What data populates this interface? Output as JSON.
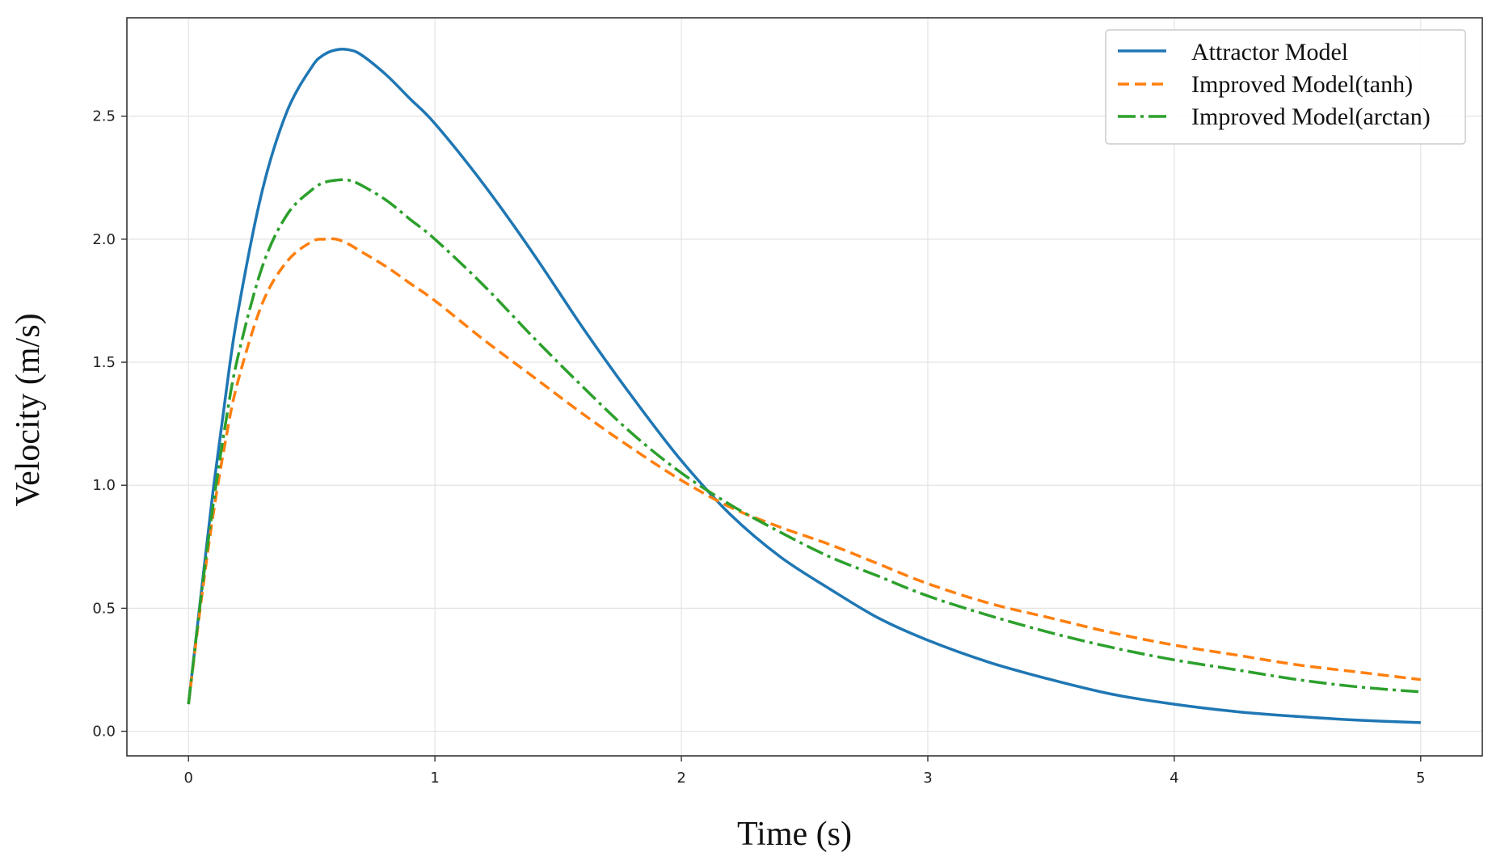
{
  "chart_data": {
    "type": "line",
    "title": "",
    "xlabel": "Time (s)",
    "ylabel": "Velocity (m/s)",
    "xlim": [
      -0.25,
      5.25
    ],
    "ylim": [
      -0.1,
      2.9
    ],
    "grid": true,
    "legend_position": "top-right",
    "x_ticks": [
      0,
      1,
      2,
      3,
      4,
      5
    ],
    "x_tick_labels": [
      "0",
      "1",
      "2",
      "3",
      "4",
      "5"
    ],
    "y_ticks": [
      0.0,
      0.5,
      1.0,
      1.5,
      2.0,
      2.5
    ],
    "y_tick_labels": [
      "0.0",
      "0.5",
      "1.0",
      "1.5",
      "2.0",
      "2.5"
    ],
    "x": [
      0,
      0.05,
      0.1,
      0.15,
      0.2,
      0.3,
      0.4,
      0.5,
      0.55,
      0.6,
      0.65,
      0.7,
      0.8,
      0.9,
      1.0,
      1.2,
      1.4,
      1.6,
      1.8,
      2.0,
      2.2,
      2.4,
      2.6,
      2.8,
      3.0,
      3.25,
      3.5,
      3.75,
      4.0,
      4.25,
      4.5,
      4.75,
      5.0
    ],
    "series": [
      {
        "name": "Attractor Model",
        "color": "#1f77b4",
        "style": "solid",
        "values": [
          0.11,
          0.55,
          0.98,
          1.36,
          1.7,
          2.2,
          2.52,
          2.7,
          2.75,
          2.77,
          2.77,
          2.75,
          2.67,
          2.57,
          2.47,
          2.22,
          1.94,
          1.64,
          1.36,
          1.1,
          0.88,
          0.71,
          0.58,
          0.46,
          0.37,
          0.28,
          0.21,
          0.15,
          0.11,
          0.08,
          0.06,
          0.045,
          0.035
        ]
      },
      {
        "name": "Improved Model(tanh)",
        "color": "#ff7f0e",
        "style": "dashed",
        "values": [
          0.11,
          0.52,
          0.88,
          1.18,
          1.42,
          1.74,
          1.91,
          1.99,
          2.0,
          2.0,
          1.98,
          1.95,
          1.89,
          1.82,
          1.75,
          1.59,
          1.44,
          1.29,
          1.15,
          1.02,
          0.91,
          0.83,
          0.76,
          0.68,
          0.6,
          0.52,
          0.46,
          0.4,
          0.35,
          0.31,
          0.27,
          0.24,
          0.21
        ]
      },
      {
        "name": "Improved Model(arctan)",
        "color": "#2ca02c",
        "style": "dashdot",
        "values": [
          0.11,
          0.54,
          0.92,
          1.25,
          1.52,
          1.89,
          2.1,
          2.2,
          2.23,
          2.24,
          2.24,
          2.22,
          2.16,
          2.08,
          2.0,
          1.81,
          1.6,
          1.4,
          1.21,
          1.05,
          0.92,
          0.81,
          0.71,
          0.63,
          0.55,
          0.47,
          0.4,
          0.34,
          0.29,
          0.25,
          0.21,
          0.18,
          0.16
        ]
      }
    ]
  }
}
